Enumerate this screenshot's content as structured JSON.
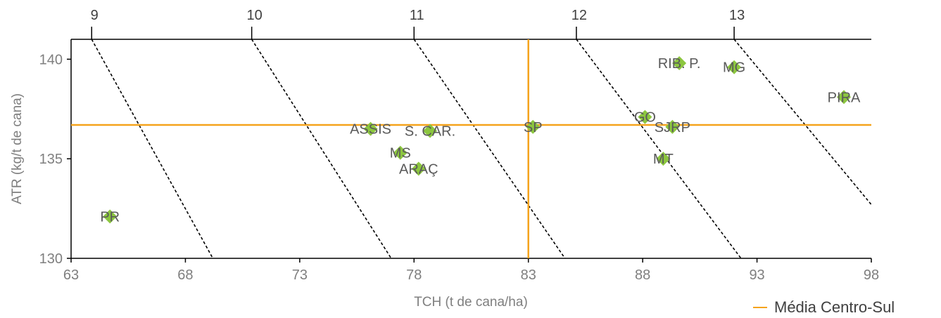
{
  "chart_data": {
    "type": "scatter",
    "xlabel": "TCH (t de cana/ha)",
    "ylabel": "ATR (kg/t de cana)",
    "xlim": [
      63,
      98
    ],
    "ylim": [
      130,
      141
    ],
    "x_ticks": [
      "63",
      "68",
      "73",
      "78",
      "83",
      "88",
      "93",
      "98"
    ],
    "y_ticks": [
      "130",
      "135",
      "140"
    ],
    "top_axis_labels": [
      "9",
      "10",
      "11",
      "12",
      "13"
    ],
    "iso_lines": [
      {
        "label": "9",
        "points": [
          [
            63.9,
            141
          ],
          [
            69.2,
            130
          ]
        ]
      },
      {
        "label": "10",
        "points": [
          [
            70.9,
            141
          ],
          [
            77.0,
            130
          ]
        ]
      },
      {
        "label": "11",
        "points": [
          [
            78.0,
            141
          ],
          [
            84.6,
            130
          ]
        ]
      },
      {
        "label": "12",
        "points": [
          [
            85.1,
            141
          ],
          [
            92.3,
            130
          ]
        ]
      },
      {
        "label": "13",
        "points": [
          [
            92.0,
            141
          ],
          [
            98.0,
            132.7
          ]
        ]
      }
    ],
    "series": [
      {
        "points": [
          {
            "label": "PR",
            "x": 64.7,
            "y": 132.1
          },
          {
            "label": "ASSIS",
            "x": 76.1,
            "y": 136.5
          },
          {
            "label": "S. CAR.",
            "x": 78.7,
            "y": 136.4
          },
          {
            "label": "MS",
            "x": 77.4,
            "y": 135.3
          },
          {
            "label": "ARAÇ",
            "x": 78.2,
            "y": 134.5
          },
          {
            "label": "SP",
            "x": 83.2,
            "y": 136.6
          },
          {
            "label": "RIB. P.",
            "x": 89.6,
            "y": 139.8
          },
          {
            "label": "MG",
            "x": 92.0,
            "y": 139.6
          },
          {
            "label": "PIRA",
            "x": 96.8,
            "y": 138.1
          },
          {
            "label": "GO",
            "x": 88.1,
            "y": 137.1
          },
          {
            "label": "SJRP",
            "x": 89.3,
            "y": 136.6
          },
          {
            "label": "MT",
            "x": 88.9,
            "y": 135.0
          }
        ]
      }
    ],
    "reference": {
      "name": "Média Centro-Sul",
      "x": 83.0,
      "y": 136.7
    },
    "colors": {
      "marker": "#8cc63f",
      "reference": "#f5a31c",
      "iso_line": "#000000",
      "axis": "#000000"
    },
    "grid": false,
    "legend_position": "bottom-right"
  }
}
